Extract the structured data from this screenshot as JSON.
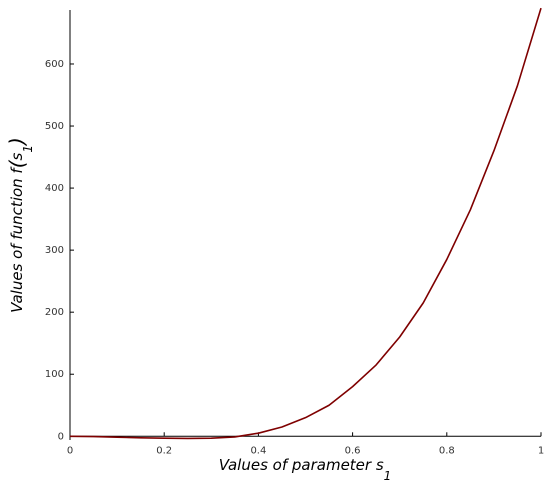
{
  "chart_data": {
    "type": "line",
    "x_label": "Values of parameter s",
    "x_label_subscript": "1",
    "y_label": "Values of function f",
    "y_label_open": "(",
    "y_label_var": "s",
    "y_label_subscript": "1",
    "y_label_close": ")",
    "x": [
      0,
      0.05,
      0.1,
      0.15,
      0.2,
      0.25,
      0.3,
      0.35,
      0.4,
      0.45,
      0.5,
      0.55,
      0.6,
      0.65,
      0.7,
      0.75,
      0.8,
      0.85,
      0.9,
      0.95,
      1
    ],
    "values": [
      0,
      -0.5,
      -1.5,
      -2.5,
      -3,
      -3.5,
      -3,
      -1,
      5,
      15,
      30,
      50,
      80,
      115,
      160,
      215,
      285,
      365,
      460,
      565,
      690
    ],
    "color": "#7f0000",
    "xlim": [
      0,
      1
    ],
    "xticks": [
      0,
      0.2,
      0.4,
      0.6,
      0.8,
      1
    ],
    "ylim": [
      -6,
      687
    ],
    "yticks": [
      0,
      100,
      200,
      300,
      400,
      500,
      600
    ],
    "grid": false
  }
}
